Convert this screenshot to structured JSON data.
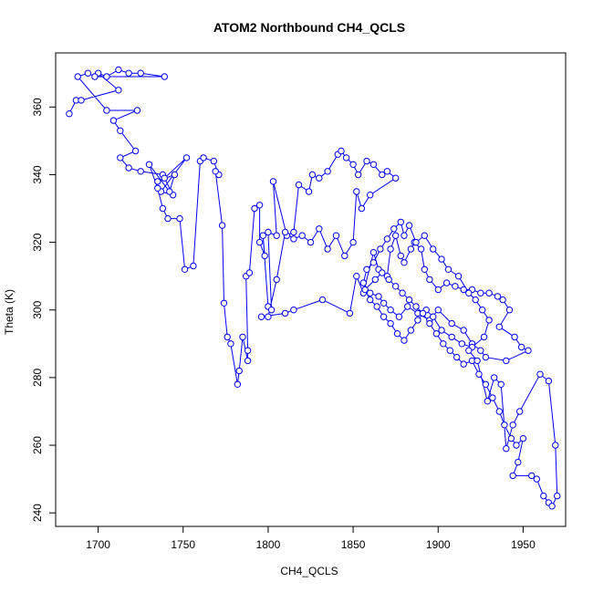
{
  "chart_data": {
    "type": "line",
    "title": "ATOM2 Northbound CH4_QCLS",
    "xlabel": "CH4_QCLS",
    "ylabel": "Theta (K)",
    "xlim": [
      1675,
      1975
    ],
    "ylim": [
      236,
      376
    ],
    "x_ticks": [
      1700,
      1750,
      1800,
      1850,
      1900,
      1950
    ],
    "y_ticks": [
      240,
      260,
      280,
      300,
      320,
      340,
      360
    ],
    "grid": false,
    "legend": "none",
    "marker": "open-circle",
    "color": "#0000ff",
    "series": [
      {
        "points": [
          [
            1683,
            358
          ],
          [
            1687,
            362
          ],
          [
            1690,
            362
          ],
          [
            1712,
            365
          ],
          [
            1700,
            370
          ],
          [
            1705,
            369
          ],
          [
            1712,
            371
          ],
          [
            1718,
            370
          ],
          [
            1725,
            370
          ],
          [
            1739,
            369
          ],
          [
            1698,
            369
          ],
          [
            1694,
            370
          ],
          [
            1688,
            369
          ],
          [
            1705,
            359
          ],
          [
            1723,
            359
          ],
          [
            1709,
            356
          ],
          [
            1713,
            353
          ],
          [
            1722,
            347
          ],
          [
            1713,
            345
          ],
          [
            1718,
            342
          ],
          [
            1725,
            341
          ],
          [
            1738,
            340
          ],
          [
            1744,
            334
          ],
          [
            1737,
            335
          ],
          [
            1752,
            345
          ],
          [
            1739,
            339
          ],
          [
            1735,
            338
          ],
          [
            1745,
            340
          ],
          [
            1742,
            335
          ],
          [
            1730,
            343
          ],
          [
            1735,
            336
          ],
          [
            1738,
            330
          ],
          [
            1741,
            327
          ],
          [
            1748,
            327
          ],
          [
            1751,
            312
          ],
          [
            1756,
            313
          ],
          [
            1760,
            344
          ],
          [
            1762,
            345
          ],
          [
            1768,
            344
          ],
          [
            1771,
            340
          ],
          [
            1769,
            341
          ],
          [
            1773,
            325
          ],
          [
            1774,
            302
          ],
          [
            1776,
            292
          ],
          [
            1778,
            290
          ],
          [
            1782,
            278
          ],
          [
            1783,
            282
          ],
          [
            1785,
            292
          ],
          [
            1788,
            285
          ],
          [
            1788,
            288
          ],
          [
            1787,
            310
          ],
          [
            1789,
            311
          ],
          [
            1792,
            330
          ],
          [
            1795,
            331
          ],
          [
            1795,
            320
          ],
          [
            1798,
            316
          ],
          [
            1797,
            322
          ],
          [
            1800,
            301
          ],
          [
            1802,
            300
          ],
          [
            1800,
            323
          ],
          [
            1805,
            322
          ],
          [
            1803,
            338
          ],
          [
            1811,
            322
          ],
          [
            1815,
            323
          ],
          [
            1818,
            337
          ],
          [
            1824,
            335
          ],
          [
            1826,
            340
          ],
          [
            1830,
            339
          ],
          [
            1835,
            341
          ],
          [
            1841,
            346
          ],
          [
            1843,
            347
          ],
          [
            1846,
            345
          ],
          [
            1850,
            343
          ],
          [
            1853,
            340
          ],
          [
            1858,
            344
          ],
          [
            1862,
            343
          ],
          [
            1867,
            340
          ],
          [
            1870,
            341
          ],
          [
            1875,
            339
          ],
          [
            1860,
            334
          ],
          [
            1855,
            330
          ],
          [
            1852,
            335
          ],
          [
            1850,
            320
          ],
          [
            1845,
            316
          ],
          [
            1840,
            322
          ],
          [
            1835,
            318
          ],
          [
            1830,
            324
          ],
          [
            1825,
            320
          ],
          [
            1820,
            322
          ],
          [
            1815,
            321
          ],
          [
            1810,
            323
          ],
          [
            1805,
            309
          ],
          [
            1800,
            298
          ],
          [
            1796,
            298
          ],
          [
            1810,
            299
          ],
          [
            1815,
            300
          ],
          [
            1832,
            303
          ],
          [
            1848,
            299
          ],
          [
            1852,
            310
          ],
          [
            1856,
            305
          ],
          [
            1862,
            317
          ],
          [
            1865,
            312
          ],
          [
            1870,
            310
          ],
          [
            1872,
            318
          ],
          [
            1875,
            322
          ],
          [
            1878,
            316
          ],
          [
            1880,
            314
          ],
          [
            1884,
            318
          ],
          [
            1886,
            320
          ],
          [
            1890,
            318
          ],
          [
            1892,
            312
          ],
          [
            1895,
            309
          ],
          [
            1900,
            306
          ],
          [
            1905,
            308
          ],
          [
            1910,
            307
          ],
          [
            1915,
            306
          ],
          [
            1920,
            306
          ],
          [
            1925,
            305
          ],
          [
            1930,
            305
          ],
          [
            1935,
            304
          ],
          [
            1938,
            303
          ],
          [
            1942,
            300
          ],
          [
            1936,
            295
          ],
          [
            1945,
            292
          ],
          [
            1949,
            289
          ],
          [
            1953,
            288
          ],
          [
            1940,
            285
          ],
          [
            1928,
            286
          ],
          [
            1925,
            288
          ],
          [
            1920,
            290
          ],
          [
            1915,
            294
          ],
          [
            1908,
            296
          ],
          [
            1900,
            300
          ],
          [
            1895,
            297
          ],
          [
            1888,
            299
          ],
          [
            1882,
            301
          ],
          [
            1877,
            298
          ],
          [
            1872,
            300
          ],
          [
            1868,
            302
          ],
          [
            1865,
            304
          ],
          [
            1860,
            305
          ],
          [
            1856,
            308
          ],
          [
            1858,
            312
          ],
          [
            1862,
            314
          ],
          [
            1866,
            318
          ],
          [
            1870,
            321
          ],
          [
            1874,
            324
          ],
          [
            1878,
            326
          ],
          [
            1880,
            322
          ],
          [
            1883,
            325
          ],
          [
            1887,
            320
          ],
          [
            1892,
            322
          ],
          [
            1897,
            318
          ],
          [
            1902,
            315
          ],
          [
            1906,
            312
          ],
          [
            1912,
            310
          ],
          [
            1918,
            305
          ],
          [
            1922,
            303
          ],
          [
            1926,
            300
          ],
          [
            1930,
            297
          ],
          [
            1927,
            292
          ],
          [
            1920,
            289
          ],
          [
            1914,
            290
          ],
          [
            1908,
            292
          ],
          [
            1902,
            294
          ],
          [
            1897,
            298
          ],
          [
            1893,
            300
          ],
          [
            1888,
            297
          ],
          [
            1884,
            294
          ],
          [
            1880,
            291
          ],
          [
            1876,
            293
          ],
          [
            1872,
            296
          ],
          [
            1868,
            298
          ],
          [
            1864,
            301
          ],
          [
            1860,
            303
          ],
          [
            1857,
            306
          ],
          [
            1863,
            309
          ],
          [
            1867,
            311
          ],
          [
            1871,
            309
          ],
          [
            1875,
            307
          ],
          [
            1879,
            305
          ],
          [
            1883,
            303
          ],
          [
            1887,
            301
          ],
          [
            1891,
            299
          ],
          [
            1895,
            296
          ],
          [
            1899,
            293
          ],
          [
            1903,
            290
          ],
          [
            1907,
            288
          ],
          [
            1911,
            286
          ],
          [
            1915,
            284
          ],
          [
            1920,
            285
          ],
          [
            1924,
            281
          ],
          [
            1928,
            278
          ],
          [
            1932,
            274
          ],
          [
            1936,
            270
          ],
          [
            1939,
            266
          ],
          [
            1943,
            262
          ],
          [
            1946,
            260
          ],
          [
            1950,
            262
          ],
          [
            1947,
            255
          ],
          [
            1944,
            251
          ],
          [
            1955,
            251
          ],
          [
            1958,
            250
          ],
          [
            1962,
            245
          ],
          [
            1965,
            243
          ],
          [
            1967,
            242
          ],
          [
            1970,
            245
          ],
          [
            1969,
            260
          ],
          [
            1965,
            279
          ],
          [
            1960,
            281
          ],
          [
            1948,
            270
          ],
          [
            1944,
            266
          ],
          [
            1940,
            259
          ],
          [
            1937,
            278
          ],
          [
            1933,
            280
          ],
          [
            1929,
            273
          ],
          [
            1923,
            285
          ],
          [
            1918,
            288
          ]
        ]
      }
    ]
  }
}
